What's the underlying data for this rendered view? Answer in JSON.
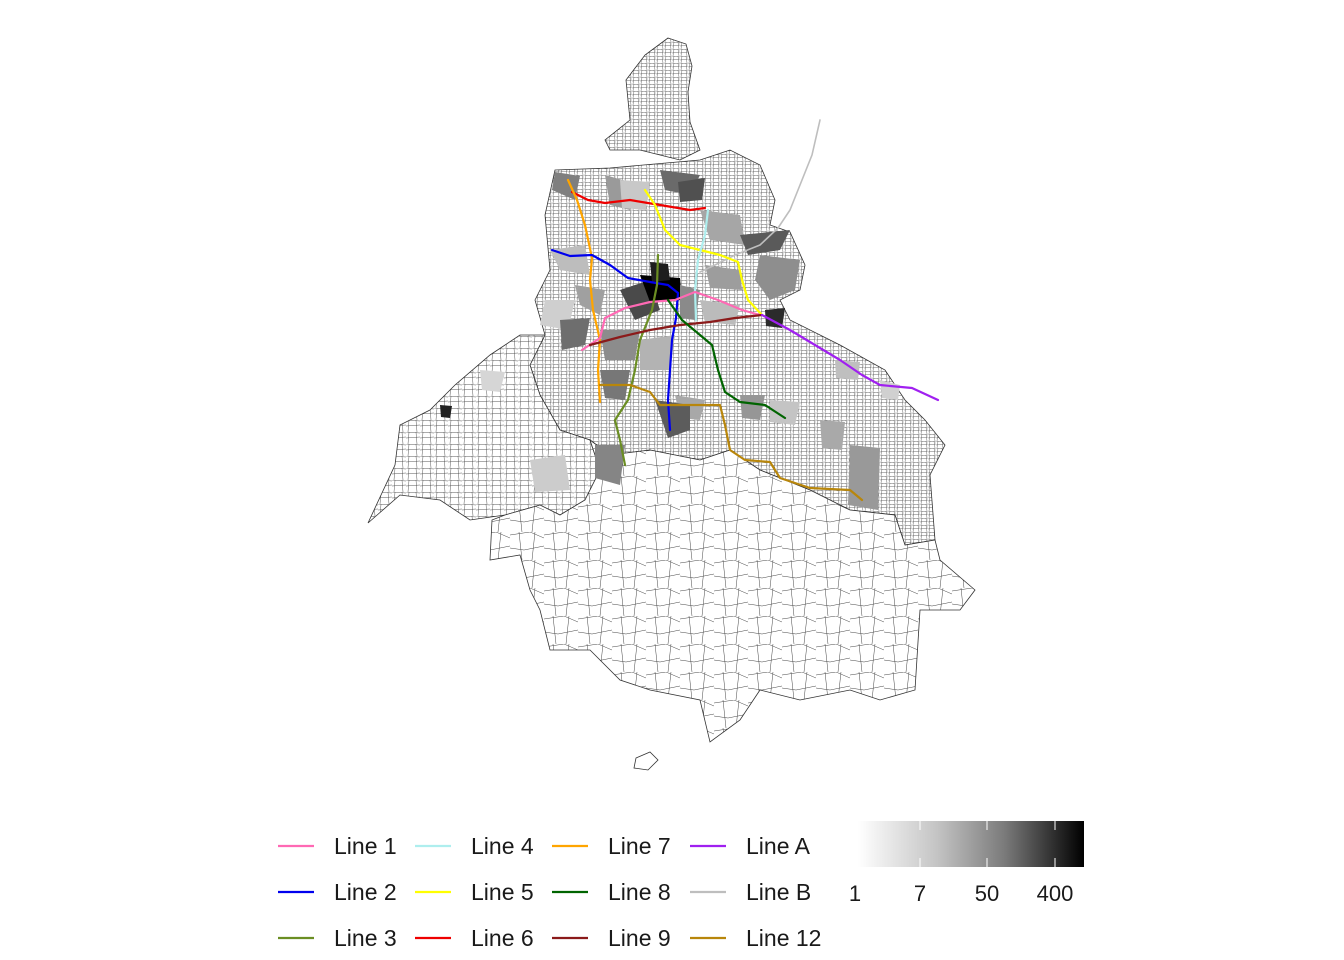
{
  "map": {
    "fill_low": "#ffffff",
    "fill_high": "#000000",
    "boundary_color": "#333333"
  },
  "legend": {
    "lines": [
      {
        "label": "Line 1",
        "color": "#ff69b4"
      },
      {
        "label": "Line 2",
        "color": "#0000ee"
      },
      {
        "label": "Line 3",
        "color": "#6b8e23"
      },
      {
        "label": "Line 4",
        "color": "#aeeeee"
      },
      {
        "label": "Line 5",
        "color": "#ffff00"
      },
      {
        "label": "Line 6",
        "color": "#ee0000"
      },
      {
        "label": "Line 7",
        "color": "#ffa500"
      },
      {
        "label": "Line 8",
        "color": "#006400"
      },
      {
        "label": "Line 9",
        "color": "#8b1a1a"
      },
      {
        "label": "Line A",
        "color": "#a020f0"
      },
      {
        "label": "Line B",
        "color": "#bebebe"
      },
      {
        "label": "Line 12",
        "color": "#b8860b"
      }
    ],
    "scale": {
      "labels": [
        "1",
        "7",
        "50",
        "400"
      ]
    }
  }
}
